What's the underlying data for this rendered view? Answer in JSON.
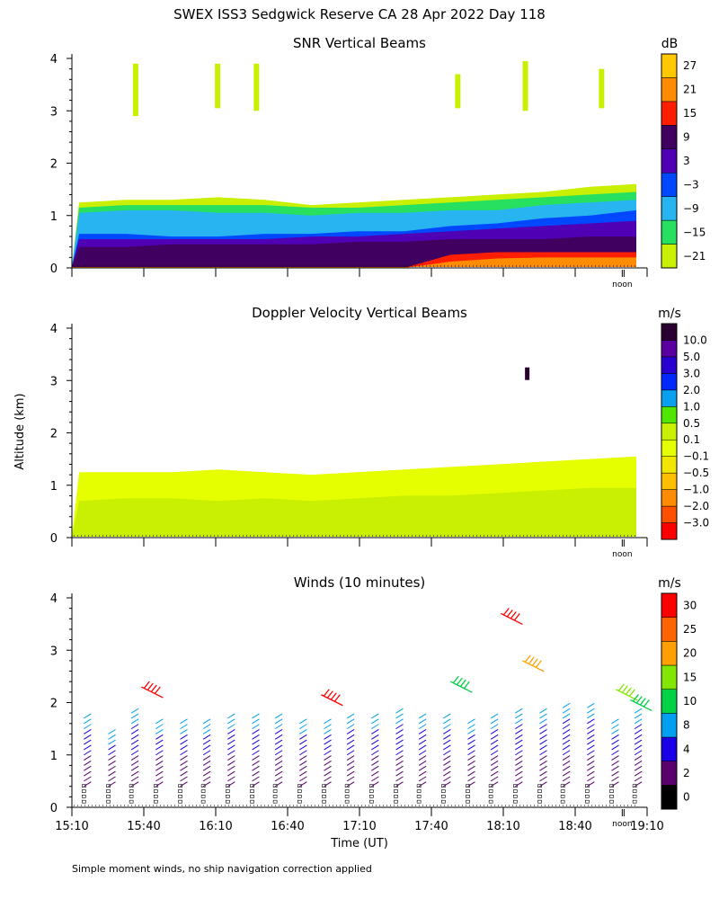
{
  "figure_title": "SWEX ISS3 Sedgwick Reserve CA  28 Apr 2022 Day 118",
  "shared": {
    "ylabel": "Altitude (km)",
    "xlabel": "Time (UT)",
    "footnote": "Simple moment winds, no ship navigation correction applied",
    "noon_label": "noon",
    "x_tick_labels": [
      "15:10",
      "15:40",
      "16:10",
      "16:40",
      "17:10",
      "17:40",
      "18:10",
      "18:40",
      "19:10"
    ],
    "y_tick_labels": [
      "0",
      "1",
      "2",
      "3",
      "4"
    ]
  },
  "colors": {
    "snr_scale": [
      "#c8f000",
      "#28e060",
      "#28b4f0",
      "#0048ff",
      "#5000b4",
      "#400060",
      "#ff1e00",
      "#ff8c00",
      "#ffc800"
    ],
    "vel_scale": [
      "#ff0000",
      "#ff5000",
      "#ff8c00",
      "#ffbe00",
      "#f0e600",
      "#e6ff00",
      "#c8f000",
      "#50e600",
      "#0aa0f0",
      "#0028ff",
      "#2800d2",
      "#5a00a0",
      "#2a0030"
    ],
    "wind_scale": [
      "#000000",
      "#5a006e",
      "#1a00e6",
      "#00a0f0",
      "#00d246",
      "#82e600",
      "#ffa000",
      "#ff6400",
      "#ff0000"
    ]
  },
  "chart_data": [
    {
      "type": "heatmap",
      "title": "SNR Vertical Beams",
      "units": "dB",
      "colorbar_ticks": [
        "27",
        "21",
        "15",
        "9",
        "3",
        "−3",
        "−9",
        "−15",
        "−21"
      ],
      "colorbar_min": -24,
      "colorbar_max": 30,
      "xlim_hours_ut": [
        15.1667,
        19.1667
      ],
      "ylim_km": [
        0,
        4
      ],
      "layers": [
        {
          "bin_db": -21,
          "top_km": [
            1.25,
            1.3,
            1.3,
            1.35,
            1.3,
            1.2,
            1.25,
            1.3,
            1.35,
            1.4,
            1.45,
            1.55,
            1.6
          ]
        },
        {
          "bin_db": -15,
          "top_km": [
            1.15,
            1.2,
            1.2,
            1.2,
            1.2,
            1.15,
            1.15,
            1.2,
            1.25,
            1.3,
            1.35,
            1.4,
            1.45
          ]
        },
        {
          "bin_db": -9,
          "top_km": [
            1.05,
            1.1,
            1.1,
            1.05,
            1.05,
            1.0,
            1.05,
            1.05,
            1.1,
            1.1,
            1.2,
            1.25,
            1.3
          ]
        },
        {
          "bin_db": -3,
          "top_km": [
            0.65,
            0.65,
            0.6,
            0.6,
            0.65,
            0.65,
            0.7,
            0.7,
            0.8,
            0.85,
            0.95,
            1.0,
            1.1
          ]
        },
        {
          "bin_db": 3,
          "top_km": [
            0.55,
            0.55,
            0.55,
            0.55,
            0.55,
            0.6,
            0.6,
            0.65,
            0.7,
            0.75,
            0.8,
            0.85,
            0.9
          ]
        },
        {
          "bin_db": 9,
          "top_km": [
            0.4,
            0.4,
            0.45,
            0.45,
            0.45,
            0.45,
            0.5,
            0.5,
            0.55,
            0.55,
            0.55,
            0.6,
            0.6
          ]
        },
        {
          "bin_db": 15,
          "top_km": [
            0.0,
            0.0,
            0.0,
            0.0,
            0.0,
            0.0,
            0.0,
            0.0,
            0.25,
            0.3,
            0.3,
            0.3,
            0.3
          ]
        },
        {
          "bin_db": 21,
          "top_km": [
            0.0,
            0.0,
            0.0,
            0.0,
            0.0,
            0.0,
            0.0,
            0.0,
            0.12,
            0.18,
            0.2,
            0.2,
            0.2
          ]
        }
      ],
      "echoes_above_2km": [
        {
          "hour": 15.61,
          "km_from": 2.9,
          "km_to": 3.9
        },
        {
          "hour": 16.18,
          "km_from": 3.05,
          "km_to": 3.9
        },
        {
          "hour": 16.45,
          "km_from": 3.0,
          "km_to": 3.9
        },
        {
          "hour": 17.85,
          "km_from": 3.05,
          "km_to": 3.7
        },
        {
          "hour": 18.32,
          "km_from": 3.0,
          "km_to": 3.95
        },
        {
          "hour": 18.85,
          "km_from": 3.05,
          "km_to": 3.8
        }
      ]
    },
    {
      "type": "heatmap",
      "title": "Doppler Velocity Vertical Beams",
      "units": "m/s",
      "colorbar_ticks": [
        "10.0",
        "5.0",
        "3.0",
        "2.0",
        "1.0",
        "0.5",
        "0.1",
        "−0.1",
        "−0.5",
        "−1.0",
        "−2.0",
        "−3.0"
      ],
      "xlim_hours_ut": [
        15.1667,
        19.1667
      ],
      "ylim_km": [
        0,
        4
      ],
      "layers": [
        {
          "bin_ms": -0.1,
          "top_km": [
            1.25,
            1.25,
            1.25,
            1.3,
            1.25,
            1.2,
            1.25,
            1.3,
            1.35,
            1.4,
            1.45,
            1.5,
            1.55
          ]
        },
        {
          "bin_ms": 0.1,
          "top_km": [
            0.7,
            0.75,
            0.75,
            0.7,
            0.75,
            0.7,
            0.75,
            0.8,
            0.8,
            0.85,
            0.9,
            0.95,
            0.95
          ]
        }
      ],
      "isolated_echo": {
        "hour": 18.33,
        "km": 3.15,
        "bin_ms": 10.0
      }
    },
    {
      "type": "barbs",
      "title": "Winds (10 minutes)",
      "units": "m/s",
      "colorbar_ticks": [
        "30",
        "25",
        "20",
        "15",
        "10",
        "8",
        "4",
        "2",
        "0"
      ],
      "colorbar_bins_ms": [
        0,
        2,
        4,
        8,
        10,
        15,
        20,
        25,
        30,
        35
      ],
      "xlim_hours_ut": [
        15.1667,
        19.1667
      ],
      "ylim_km": [
        0,
        4
      ],
      "profile_times_hour_ut": [
        15.25,
        15.42,
        15.58,
        15.75,
        15.92,
        16.08,
        16.25,
        16.42,
        16.58,
        16.75,
        16.92,
        17.08,
        17.25,
        17.42,
        17.58,
        17.75,
        17.92,
        18.08,
        18.25,
        18.42,
        18.58,
        18.75,
        18.92,
        19.08
      ],
      "typical_profile": {
        "top_km": [
          1.8,
          1.45,
          1.9,
          1.7,
          1.65,
          1.7,
          1.75,
          1.8,
          1.8,
          1.65,
          1.7,
          1.75,
          1.8,
          1.85,
          1.75,
          1.75,
          1.7,
          1.8,
          1.9,
          1.85,
          2.0,
          1.95,
          1.7,
          1.85
        ]
      },
      "upper_winds": [
        {
          "hour": 15.65,
          "km": 2.3,
          "speed_ms": 32
        },
        {
          "hour": 16.9,
          "km": 2.15,
          "speed_ms": 31
        },
        {
          "hour": 17.8,
          "km": 2.4,
          "speed_ms": 12
        },
        {
          "hour": 18.15,
          "km": 3.7,
          "speed_ms": 32
        },
        {
          "hour": 18.3,
          "km": 2.8,
          "speed_ms": 25
        },
        {
          "hour": 18.95,
          "km": 2.25,
          "speed_ms": 18
        },
        {
          "hour": 19.05,
          "km": 2.05,
          "speed_ms": 12
        }
      ]
    }
  ]
}
